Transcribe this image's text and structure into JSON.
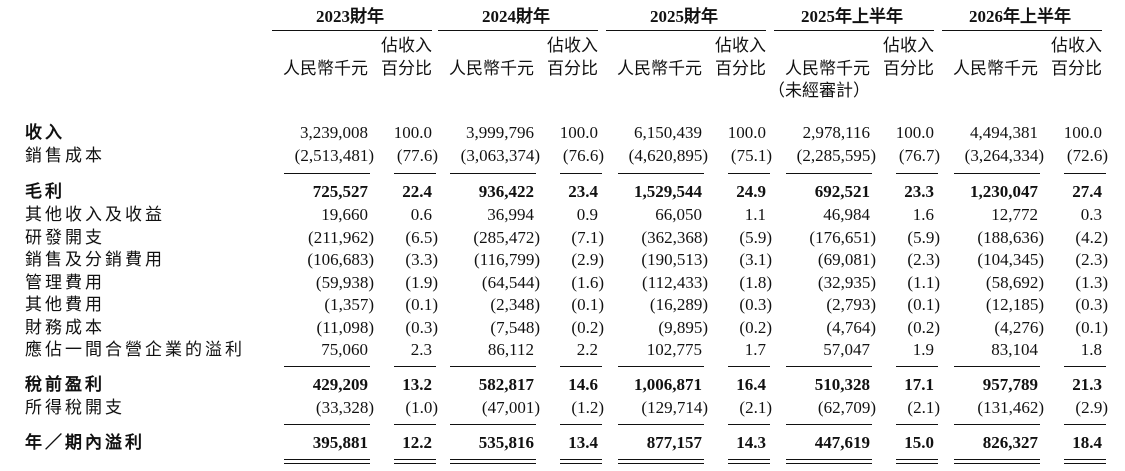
{
  "columns": [
    {
      "period": "2023財年",
      "unit": "人民幣千元",
      "pct_line1": "佔收入",
      "pct_line2": "百分比"
    },
    {
      "period": "2024財年",
      "unit": "人民幣千元",
      "pct_line1": "佔收入",
      "pct_line2": "百分比"
    },
    {
      "period": "2025財年",
      "unit": "人民幣千元",
      "pct_line1": "佔收入",
      "pct_line2": "百分比"
    },
    {
      "period": "2025年上半年",
      "unit": "人民幣千元",
      "pct_line1": "佔收入",
      "pct_line2": "百分比",
      "note": "（未經審計）"
    },
    {
      "period": "2026年上半年",
      "unit": "人民幣千元",
      "pct_line1": "佔收入",
      "pct_line2": "百分比"
    }
  ],
  "rows": [
    {
      "label": "收入",
      "label_bold": true,
      "values": [
        "3,239,008",
        "100.0",
        "3,999,796",
        "100.0",
        "6,150,439",
        "100.0",
        "2,978,116",
        "100.0",
        "4,494,381",
        "100.0"
      ]
    },
    {
      "label": "銷售成本",
      "values": [
        "(2,513,481)",
        "(77.6)",
        "(3,063,374)",
        "(76.6)",
        "(4,620,895)",
        "(75.1)",
        "(2,285,595)",
        "(76.7)",
        "(3,264,334)",
        "(72.6)"
      ]
    },
    {
      "label": "毛利",
      "bold": true,
      "values": [
        "725,527",
        "22.4",
        "936,422",
        "23.4",
        "1,529,544",
        "24.9",
        "692,521",
        "23.3",
        "1,230,047",
        "27.4"
      ]
    },
    {
      "label": "其他收入及收益",
      "values": [
        "19,660",
        "0.6",
        "36,994",
        "0.9",
        "66,050",
        "1.1",
        "46,984",
        "1.6",
        "12,772",
        "0.3"
      ]
    },
    {
      "label": "研發開支",
      "values": [
        "(211,962)",
        "(6.5)",
        "(285,472)",
        "(7.1)",
        "(362,368)",
        "(5.9)",
        "(176,651)",
        "(5.9)",
        "(188,636)",
        "(4.2)"
      ]
    },
    {
      "label": "銷售及分銷費用",
      "values": [
        "(106,683)",
        "(3.3)",
        "(116,799)",
        "(2.9)",
        "(190,513)",
        "(3.1)",
        "(69,081)",
        "(2.3)",
        "(104,345)",
        "(2.3)"
      ]
    },
    {
      "label": "管理費用",
      "values": [
        "(59,938)",
        "(1.9)",
        "(64,544)",
        "(1.6)",
        "(112,433)",
        "(1.8)",
        "(32,935)",
        "(1.1)",
        "(58,692)",
        "(1.3)"
      ]
    },
    {
      "label": "其他費用",
      "values": [
        "(1,357)",
        "(0.1)",
        "(2,348)",
        "(0.1)",
        "(16,289)",
        "(0.3)",
        "(2,793)",
        "(0.1)",
        "(12,185)",
        "(0.3)"
      ]
    },
    {
      "label": "財務成本",
      "values": [
        "(11,098)",
        "(0.3)",
        "(7,548)",
        "(0.2)",
        "(9,895)",
        "(0.2)",
        "(4,764)",
        "(0.2)",
        "(4,276)",
        "(0.1)"
      ]
    },
    {
      "label": "應佔一間合營企業的溢利",
      "values": [
        "75,060",
        "2.3",
        "86,112",
        "2.2",
        "102,775",
        "1.7",
        "57,047",
        "1.9",
        "83,104",
        "1.8"
      ]
    },
    {
      "label": "稅前盈利",
      "bold": true,
      "values": [
        "429,209",
        "13.2",
        "582,817",
        "14.6",
        "1,006,871",
        "16.4",
        "510,328",
        "17.1",
        "957,789",
        "21.3"
      ]
    },
    {
      "label": "所得稅開支",
      "values": [
        "(33,328)",
        "(1.0)",
        "(47,001)",
        "(1.2)",
        "(129,714)",
        "(2.1)",
        "(62,709)",
        "(2.1)",
        "(131,462)",
        "(2.9)"
      ]
    },
    {
      "label": "年／期內溢利",
      "bold": true,
      "values": [
        "395,881",
        "12.2",
        "535,816",
        "13.4",
        "877,157",
        "14.3",
        "447,619",
        "15.0",
        "826,327",
        "18.4"
      ]
    }
  ]
}
